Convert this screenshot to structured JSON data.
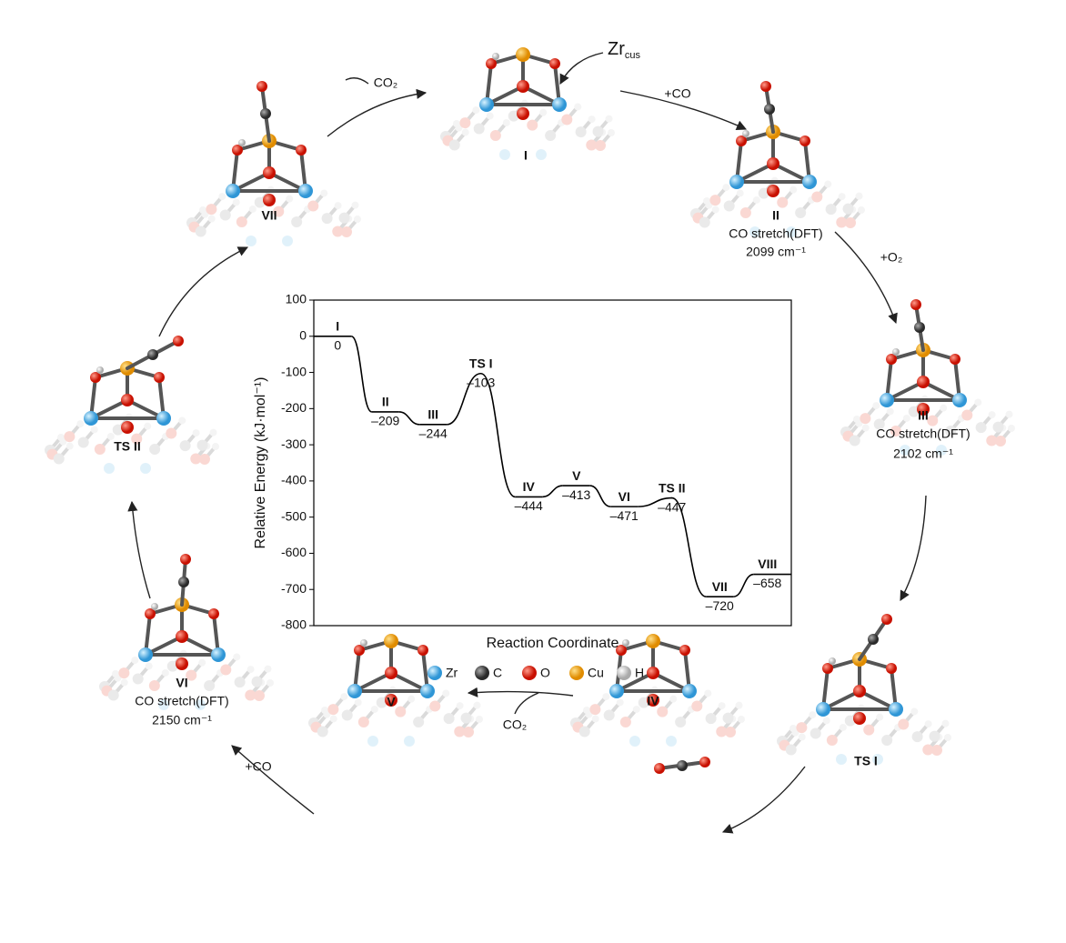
{
  "chart_data": {
    "type": "energy-profile",
    "y_label": "Relative Energy (kJ·mol⁻¹)",
    "x_label": "Reaction Coordinate",
    "categories": [
      "I",
      "II",
      "III",
      "TS I",
      "IV",
      "V",
      "VI",
      "TS II",
      "VII",
      "VIII"
    ],
    "values": [
      0,
      -209,
      -244,
      -103,
      -444,
      -413,
      -471,
      -447,
      -720,
      -658
    ],
    "value_labels": [
      "0",
      "–209",
      "–244",
      "–103",
      "–444",
      "–413",
      "–471",
      "–447",
      "–720",
      "–658"
    ],
    "color": "#000000",
    "ylim": [
      -800,
      100
    ],
    "yticks": [
      -800,
      -700,
      -600,
      -500,
      -400,
      -300,
      -200,
      -100,
      0,
      100
    ]
  },
  "legend": [
    {
      "name": "Zr",
      "color": "#4fb6ea"
    },
    {
      "name": "C",
      "color": "#4a4a4a"
    },
    {
      "name": "O",
      "color": "#e8200c"
    },
    {
      "name": "Cu",
      "color": "#f4a100"
    },
    {
      "name": "H",
      "color": "#d8d8d8"
    }
  ],
  "cycle": {
    "structures": [
      {
        "label": "I"
      },
      {
        "label": "II",
        "note": "CO stretch(DFT)",
        "freq": "2099 cm⁻¹"
      },
      {
        "label": "III",
        "note": "CO stretch(DFT)",
        "freq": "2102 cm⁻¹"
      },
      {
        "label": "TS I"
      },
      {
        "label": "IV"
      },
      {
        "label": "V"
      },
      {
        "label": "VI",
        "note": "CO stretch(DFT)",
        "freq": "2150 cm⁻¹"
      },
      {
        "label": "TS II"
      },
      {
        "label": "VII"
      }
    ],
    "site": {
      "main": "Zr",
      "sub": "cus"
    },
    "steps": [
      "+CO",
      "+O₂",
      "CO₂",
      "+CO",
      "CO₂"
    ]
  }
}
